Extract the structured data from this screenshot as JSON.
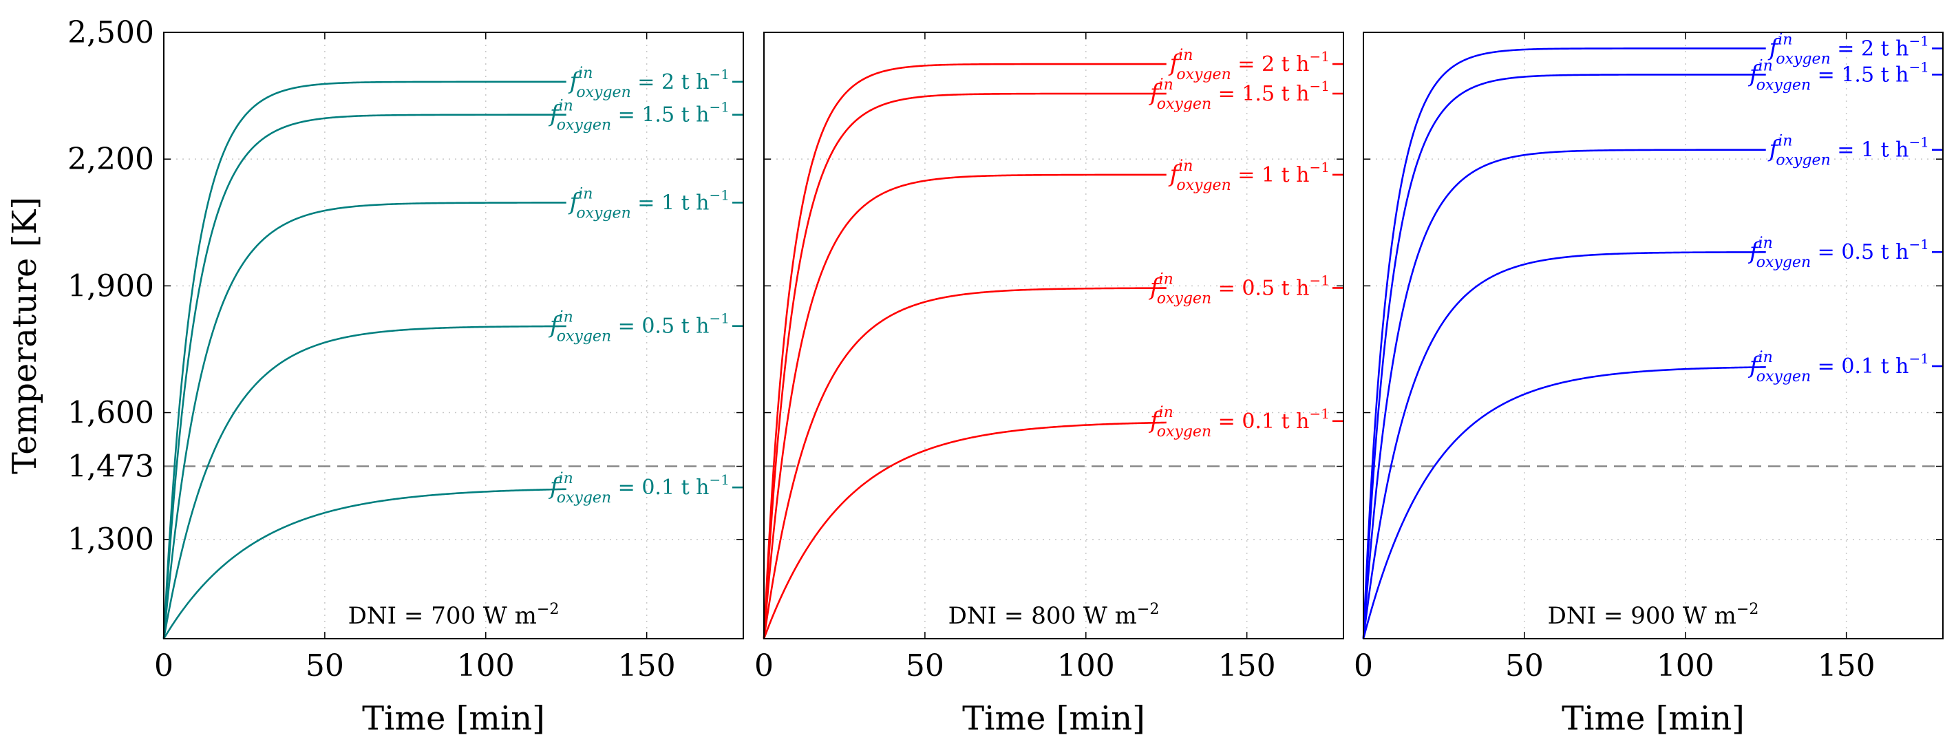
{
  "chart_data": {
    "type": "line",
    "ylabel": "Temperature [K]",
    "xlabel": "Time [min]",
    "xlim": [
      0,
      180
    ],
    "ylim": [
      1065,
      2500
    ],
    "xticks": [
      0,
      50,
      100,
      150
    ],
    "xtick_labels": [
      "0",
      "50",
      "100",
      "150"
    ],
    "yticks": [
      1300,
      1473,
      1600,
      1900,
      2200,
      2500
    ],
    "ytick_labels": [
      "1,300",
      "1,473",
      "1,600",
      "1,900",
      "2,200",
      "2,500"
    ],
    "reference_line": {
      "y": 1473,
      "style": "dashed",
      "color": "#888888"
    },
    "grid": true,
    "label_prefix": "f",
    "label_superscript": "in",
    "label_subscript": "oxygen",
    "label_unit": "t h",
    "label_unit_exp": "−1",
    "start_temperature": 1065,
    "panels": [
      {
        "title": "DNI = 700 W m",
        "title_exp": "−2",
        "color": "#007f7f",
        "series": [
          {
            "name": "2 t h^-1",
            "rate_label": "2",
            "steady": 2383,
            "tau": 9.0
          },
          {
            "name": "1.5 t h^-1",
            "rate_label": "1.5",
            "steady": 2305,
            "tau": 10.0
          },
          {
            "name": "1 t h^-1",
            "rate_label": "1",
            "steady": 2097,
            "tau": 12.5
          },
          {
            "name": "0.5 t h^-1",
            "rate_label": "0.5",
            "steady": 1805,
            "tau": 17.0
          },
          {
            "name": "0.1 t h^-1",
            "rate_label": "0.1",
            "steady": 1423,
            "tau": 28.0
          }
        ]
      },
      {
        "title": "DNI = 800 W m",
        "title_exp": "−2",
        "color": "#ff0000",
        "series": [
          {
            "name": "2 t h^-1",
            "rate_label": "2",
            "steady": 2425,
            "tau": 8.5
          },
          {
            "name": "1.5 t h^-1",
            "rate_label": "1.5",
            "steady": 2355,
            "tau": 9.5
          },
          {
            "name": "1 t h^-1",
            "rate_label": "1",
            "steady": 2163,
            "tau": 11.5
          },
          {
            "name": "0.5 t h^-1",
            "rate_label": "0.5",
            "steady": 1895,
            "tau": 15.5
          },
          {
            "name": "0.1 t h^-1",
            "rate_label": "0.1",
            "steady": 1580,
            "tau": 25.0
          }
        ]
      },
      {
        "title": "DNI = 900 W m",
        "title_exp": "−2",
        "color": "#0000ff",
        "series": [
          {
            "name": "2 t h^-1",
            "rate_label": "2",
            "steady": 2462,
            "tau": 8.0
          },
          {
            "name": "1.5 t h^-1",
            "rate_label": "1.5",
            "steady": 2400,
            "tau": 9.0
          },
          {
            "name": "1 t h^-1",
            "rate_label": "1",
            "steady": 2222,
            "tau": 11.0
          },
          {
            "name": "0.5 t h^-1",
            "rate_label": "0.5",
            "steady": 1980,
            "tau": 14.5
          },
          {
            "name": "0.1 t h^-1",
            "rate_label": "0.1",
            "steady": 1710,
            "tau": 22.0
          }
        ]
      }
    ]
  }
}
